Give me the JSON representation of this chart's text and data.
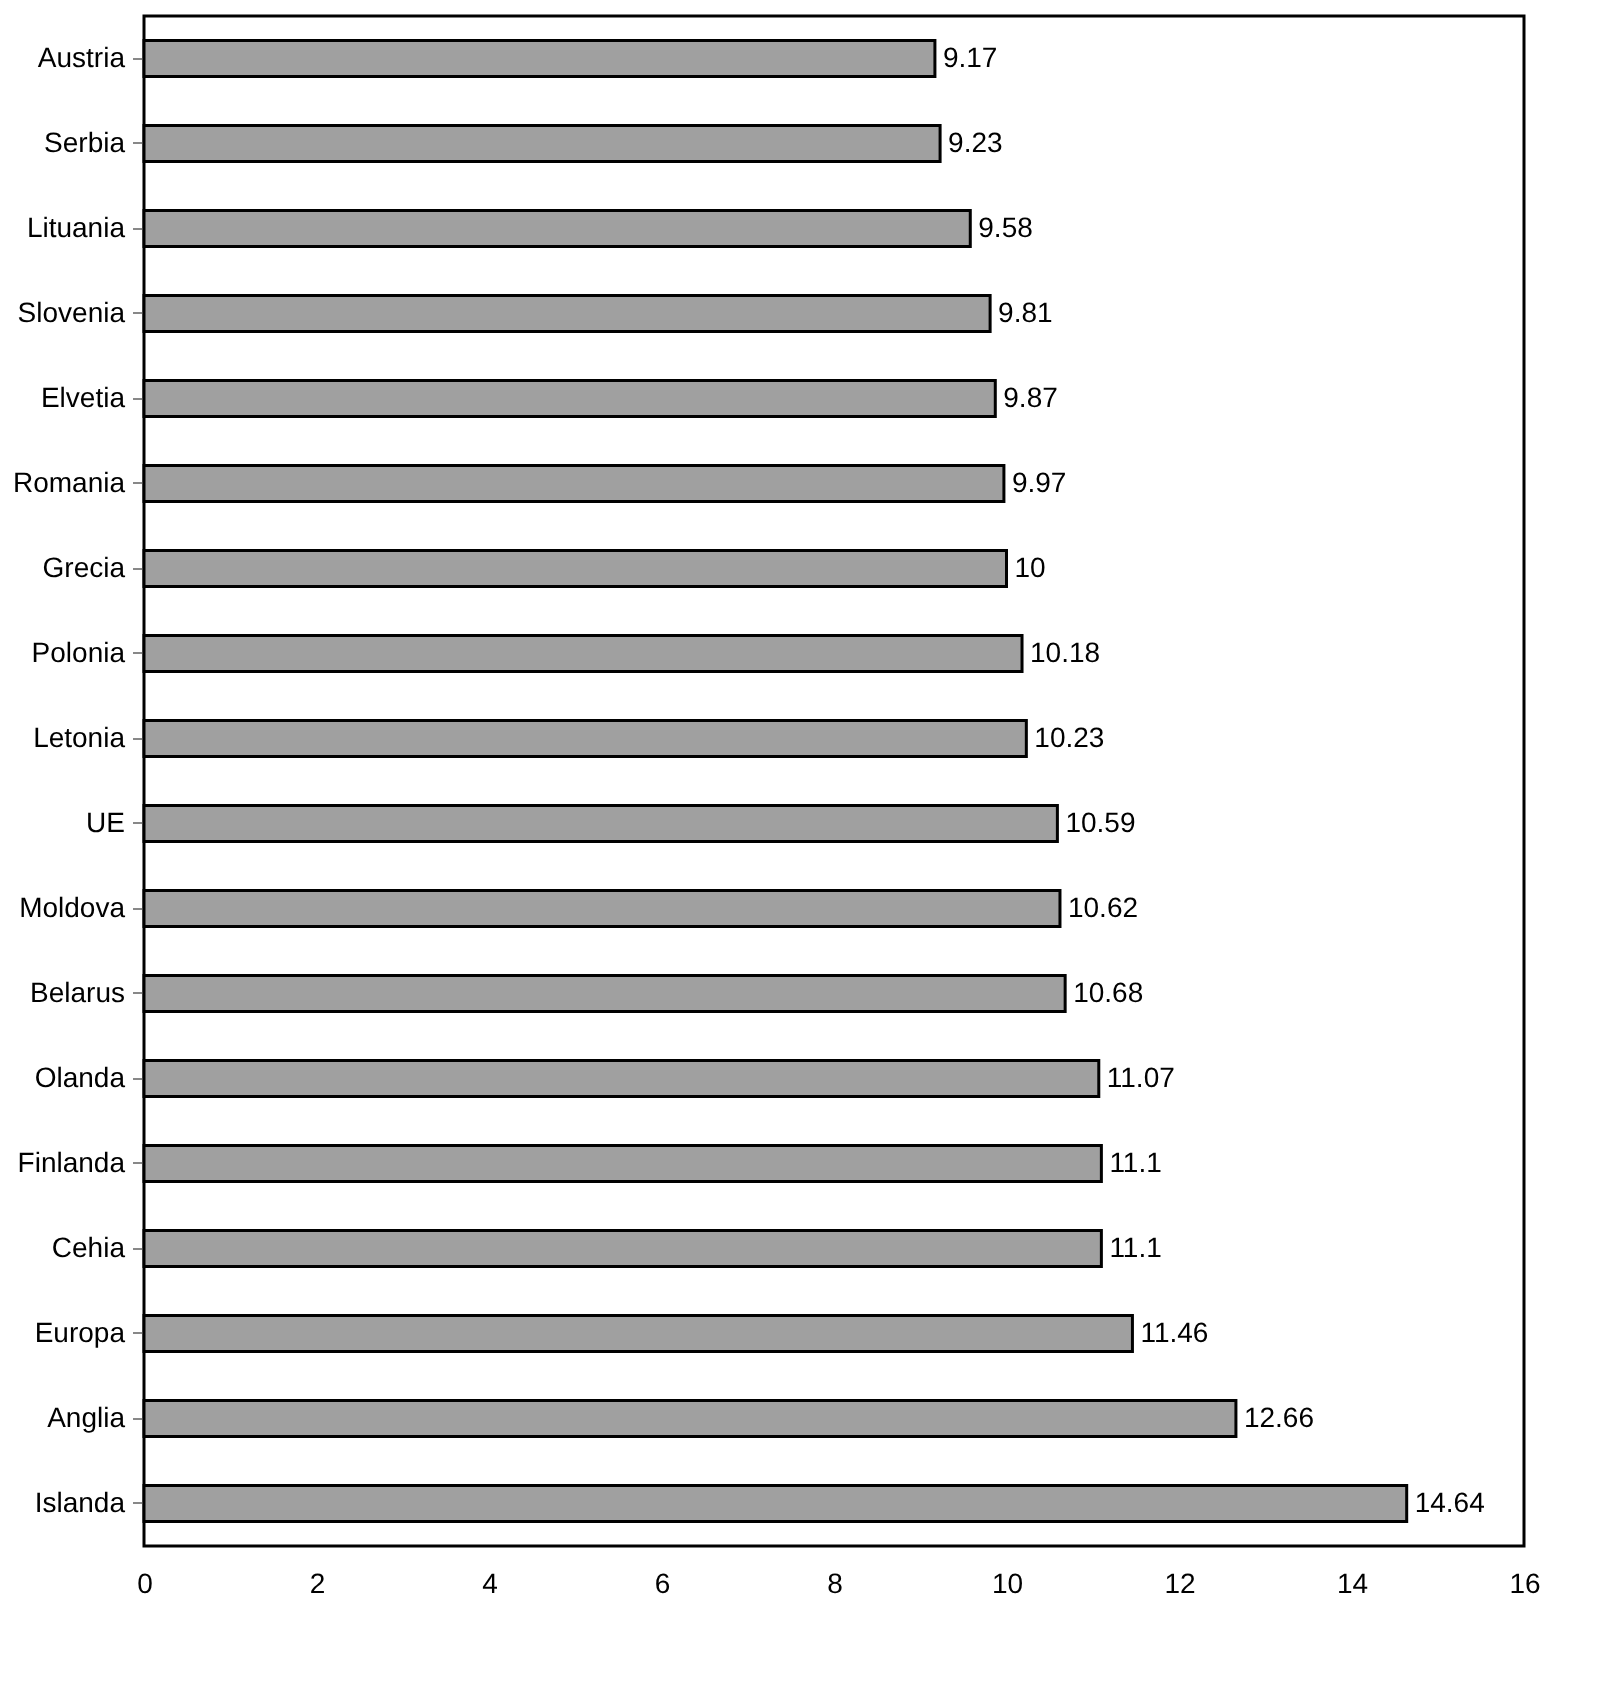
{
  "chart_data": {
    "type": "bar",
    "orientation": "horizontal",
    "categories": [
      "Austria",
      "Serbia",
      "Lituania",
      "Slovenia",
      "Elvetia",
      "Romania",
      "Grecia",
      "Polonia",
      "Letonia",
      "UE",
      "Moldova",
      "Belarus",
      "Olanda",
      "Finlanda",
      "Cehia",
      "Europa",
      "Anglia",
      "Islanda"
    ],
    "values": [
      9.17,
      9.23,
      9.58,
      9.81,
      9.87,
      9.97,
      10,
      10.18,
      10.23,
      10.59,
      10.62,
      10.68,
      11.07,
      11.1,
      11.1,
      11.46,
      12.66,
      14.64
    ],
    "color": "#a0a0a0",
    "xlim": [
      0,
      16
    ],
    "xticks": [
      0,
      2,
      4,
      6,
      8,
      10,
      12,
      14,
      16
    ],
    "data_labels": true,
    "grid": false
  }
}
